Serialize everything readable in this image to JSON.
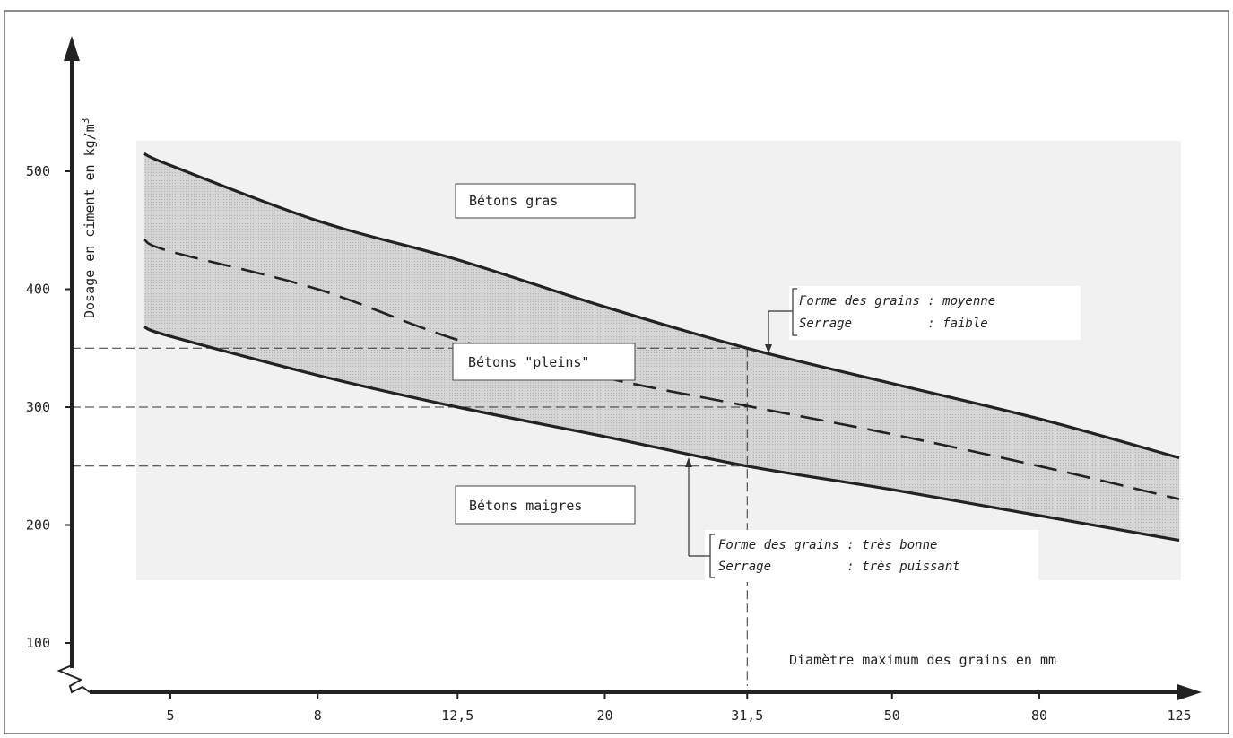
{
  "chart_data": {
    "type": "line",
    "xlabel": "Diamètre maximum des grains en mm",
    "ylabel": "Dosage en ciment en kg/m",
    "ylabel_sup": "3",
    "x_scale": "log",
    "x_ticks": [
      {
        "value": 5,
        "label": "5"
      },
      {
        "value": 8,
        "label": "8"
      },
      {
        "value": 12.5,
        "label": "12,5"
      },
      {
        "value": 20,
        "label": "20"
      },
      {
        "value": 31.5,
        "label": "31,5"
      },
      {
        "value": 50,
        "label": "50"
      },
      {
        "value": 80,
        "label": "80"
      },
      {
        "value": 125,
        "label": "125"
      }
    ],
    "y_ticks": [
      100,
      200,
      300,
      400,
      500
    ],
    "xlim": [
      3.8,
      150
    ],
    "ylim": [
      75,
      580
    ],
    "shaded_band": true,
    "series": [
      {
        "style": "solid",
        "x": [
          4.6,
          5,
          8,
          12.5,
          20,
          31.5,
          50,
          80,
          125
        ],
        "y": [
          515,
          505,
          458,
          425,
          385,
          350,
          320,
          290,
          257
        ]
      },
      {
        "style": "dashed",
        "x": [
          4.6,
          5,
          8,
          12.5,
          20,
          31.5,
          50,
          80,
          125
        ],
        "y": [
          442,
          432,
          400,
          357,
          325,
          301,
          277,
          250,
          222
        ]
      },
      {
        "style": "solid",
        "x": [
          4.6,
          5,
          8,
          12.5,
          20,
          31.5,
          50,
          80,
          125
        ],
        "y": [
          368,
          360,
          327,
          300,
          275,
          250,
          230,
          208,
          187
        ]
      }
    ],
    "reference_lines": {
      "y": [
        350,
        300,
        250
      ],
      "x": 31.5
    },
    "region_labels": [
      "Bétons gras",
      "Bétons \"pleins\"",
      "Bétons maigres"
    ],
    "annotations": {
      "upper": {
        "line1": "Forme des grains : moyenne",
        "line2": "Serrage          : faible"
      },
      "lower": {
        "line1": "Forme des grains : très bonne",
        "line2": "Serrage          : très puissant"
      }
    }
  }
}
